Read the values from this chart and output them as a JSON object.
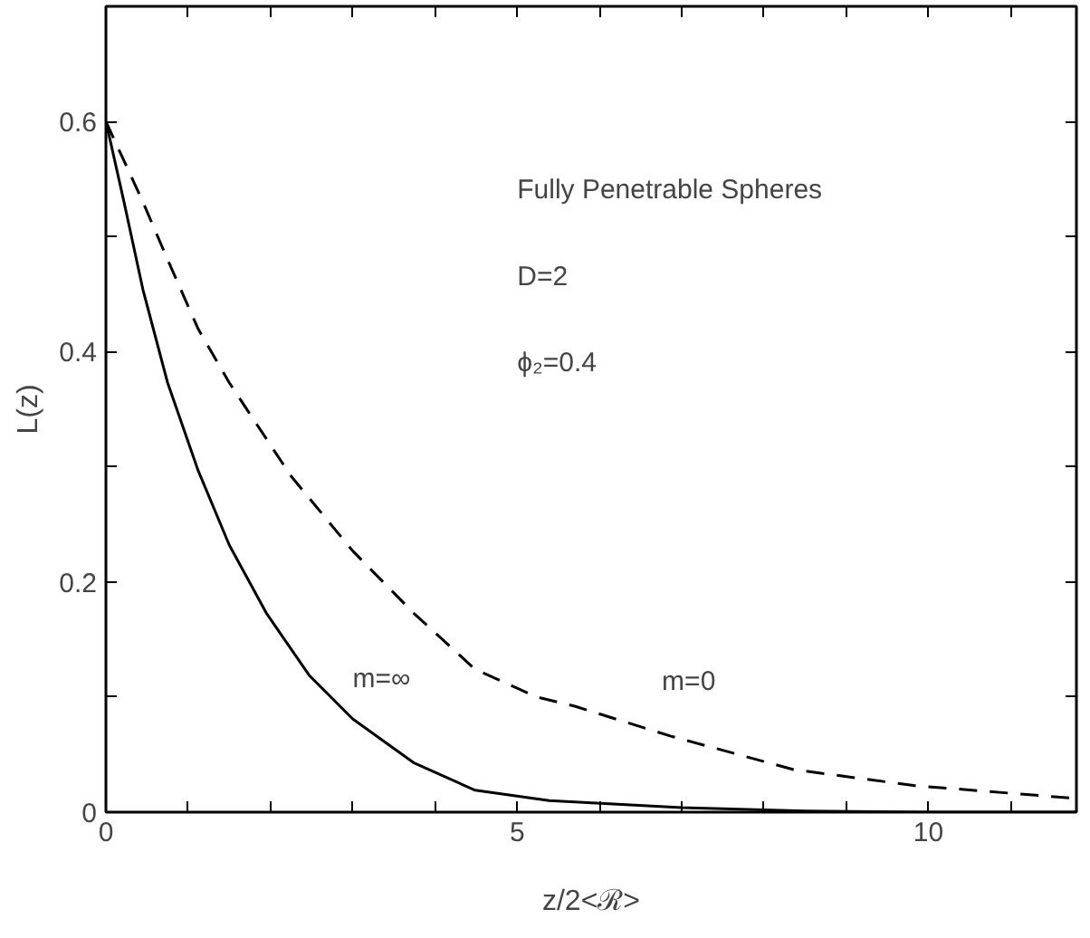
{
  "chart_data": {
    "type": "line",
    "xlabel": "z/2<ℛ>",
    "ylabel": "L(z)",
    "xlim": [
      0,
      11.8
    ],
    "ylim": [
      0,
      0.7
    ],
    "xticks": [
      0,
      {
        "value": 1,
        "label": null
      },
      {
        "value": 2,
        "label": null
      },
      {
        "value": 3,
        "label": null
      },
      {
        "value": 4,
        "label": null
      },
      5,
      {
        "value": 6,
        "label": null
      },
      {
        "value": 7,
        "label": null
      },
      {
        "value": 8,
        "label": null
      },
      {
        "value": 9,
        "label": null
      },
      10,
      {
        "value": 11,
        "label": null
      }
    ],
    "yticks": [
      0,
      {
        "value": 0.1,
        "label": null
      },
      0.2,
      {
        "value": 0.3,
        "label": null
      },
      0.4,
      {
        "value": 0.5,
        "label": null
      },
      0.6
    ],
    "series": [
      {
        "name": "m=∞",
        "color": "#000000",
        "line_style": "solid",
        "x": [
          0,
          0.22,
          0.45,
          0.75,
          1.12,
          1.5,
          1.95,
          2.47,
          3.0,
          3.74,
          4.49,
          5.39,
          7.0,
          8.5,
          10,
          11.8
        ],
        "values": [
          0.6,
          0.53,
          0.454,
          0.373,
          0.297,
          0.232,
          0.173,
          0.119,
          0.081,
          0.043,
          0.019,
          0.01,
          0.004,
          0.001,
          0,
          0
        ]
      },
      {
        "name": "m=0",
        "color": "#000000",
        "line_style": "dashed",
        "x": [
          0,
          0.45,
          0.75,
          1.12,
          1.5,
          2.25,
          3.0,
          3.74,
          4.49,
          5.24,
          5.7,
          6.87,
          8.36,
          9.84,
          11.78
        ],
        "values": [
          0.6,
          0.53,
          0.48,
          0.42,
          0.373,
          0.292,
          0.227,
          0.173,
          0.124,
          0.1,
          0.092,
          0.066,
          0.037,
          0.023,
          0.012
        ]
      }
    ],
    "annotations": [
      "Fully Penetrable Spheres",
      "D=2",
      "ϕ₂=0.4"
    ]
  }
}
